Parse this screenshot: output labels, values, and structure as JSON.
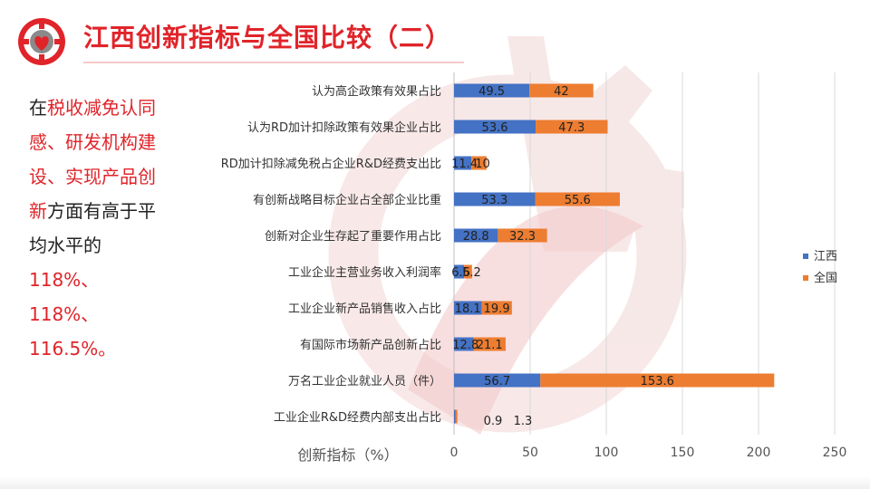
{
  "slide": {
    "title": "江西创新指标与全国比较（二）",
    "sidebar_segments": [
      {
        "text": "在",
        "highlight": false
      },
      {
        "text": "税收减免认同感、研发机构建设、实现产品创新",
        "highlight": true
      },
      {
        "text": "方面有高于平均水平的",
        "highlight": false
      },
      {
        "text": "118%、118%、116.5%。",
        "highlight": true
      }
    ],
    "colors": {
      "accent": "#e0242a",
      "series_jiangxi": "#4472c4",
      "series_national": "#ed7d31"
    },
    "logo_icon": "gear-heart-logo-icon"
  },
  "chart_data": {
    "type": "bar",
    "orientation": "horizontal",
    "stacked": true,
    "categories": [
      "认为高企政策有效果占比",
      "认为RD加计扣除政策有效果企业占比",
      "RD加计扣除减免税占企业R&D经费支出比",
      "有创新战略目标企业占全部企业比重",
      "创新对企业生存起了重要作用占比",
      "工业企业主营业务收入利润率",
      "工业企业新产品销售收入占比",
      "有国际市场新产品创新占比",
      "万名工业企业就业人员（件）",
      "工业企业R&D经费内部支出占比"
    ],
    "series": [
      {
        "name": "江西",
        "values": [
          49.5,
          53.6,
          11.4,
          53.3,
          28.8,
          6.6,
          18.1,
          12.8,
          56.7,
          0.9
        ]
      },
      {
        "name": "全国",
        "values": [
          42,
          47.3,
          10,
          55.6,
          32.3,
          5.2,
          19.9,
          21.1,
          153.6,
          1.3
        ]
      }
    ],
    "value_labels": {
      "江西": [
        "49.5",
        "53.6",
        "11.4",
        "53.3",
        "28.8",
        "6.6",
        "18.1",
        "12.8",
        "56.7",
        "0.9"
      ],
      "全国": [
        "42",
        "47.3",
        "10",
        "55.6",
        "32.3",
        "5.2",
        "19.9",
        "21.1",
        "153.6",
        "1.3"
      ]
    },
    "xlim": [
      0,
      250
    ],
    "xticks": [
      "0",
      "50",
      "100",
      "150",
      "200",
      "250"
    ],
    "xlabel": "创新指标（%）",
    "legend": "right",
    "grid": true
  }
}
